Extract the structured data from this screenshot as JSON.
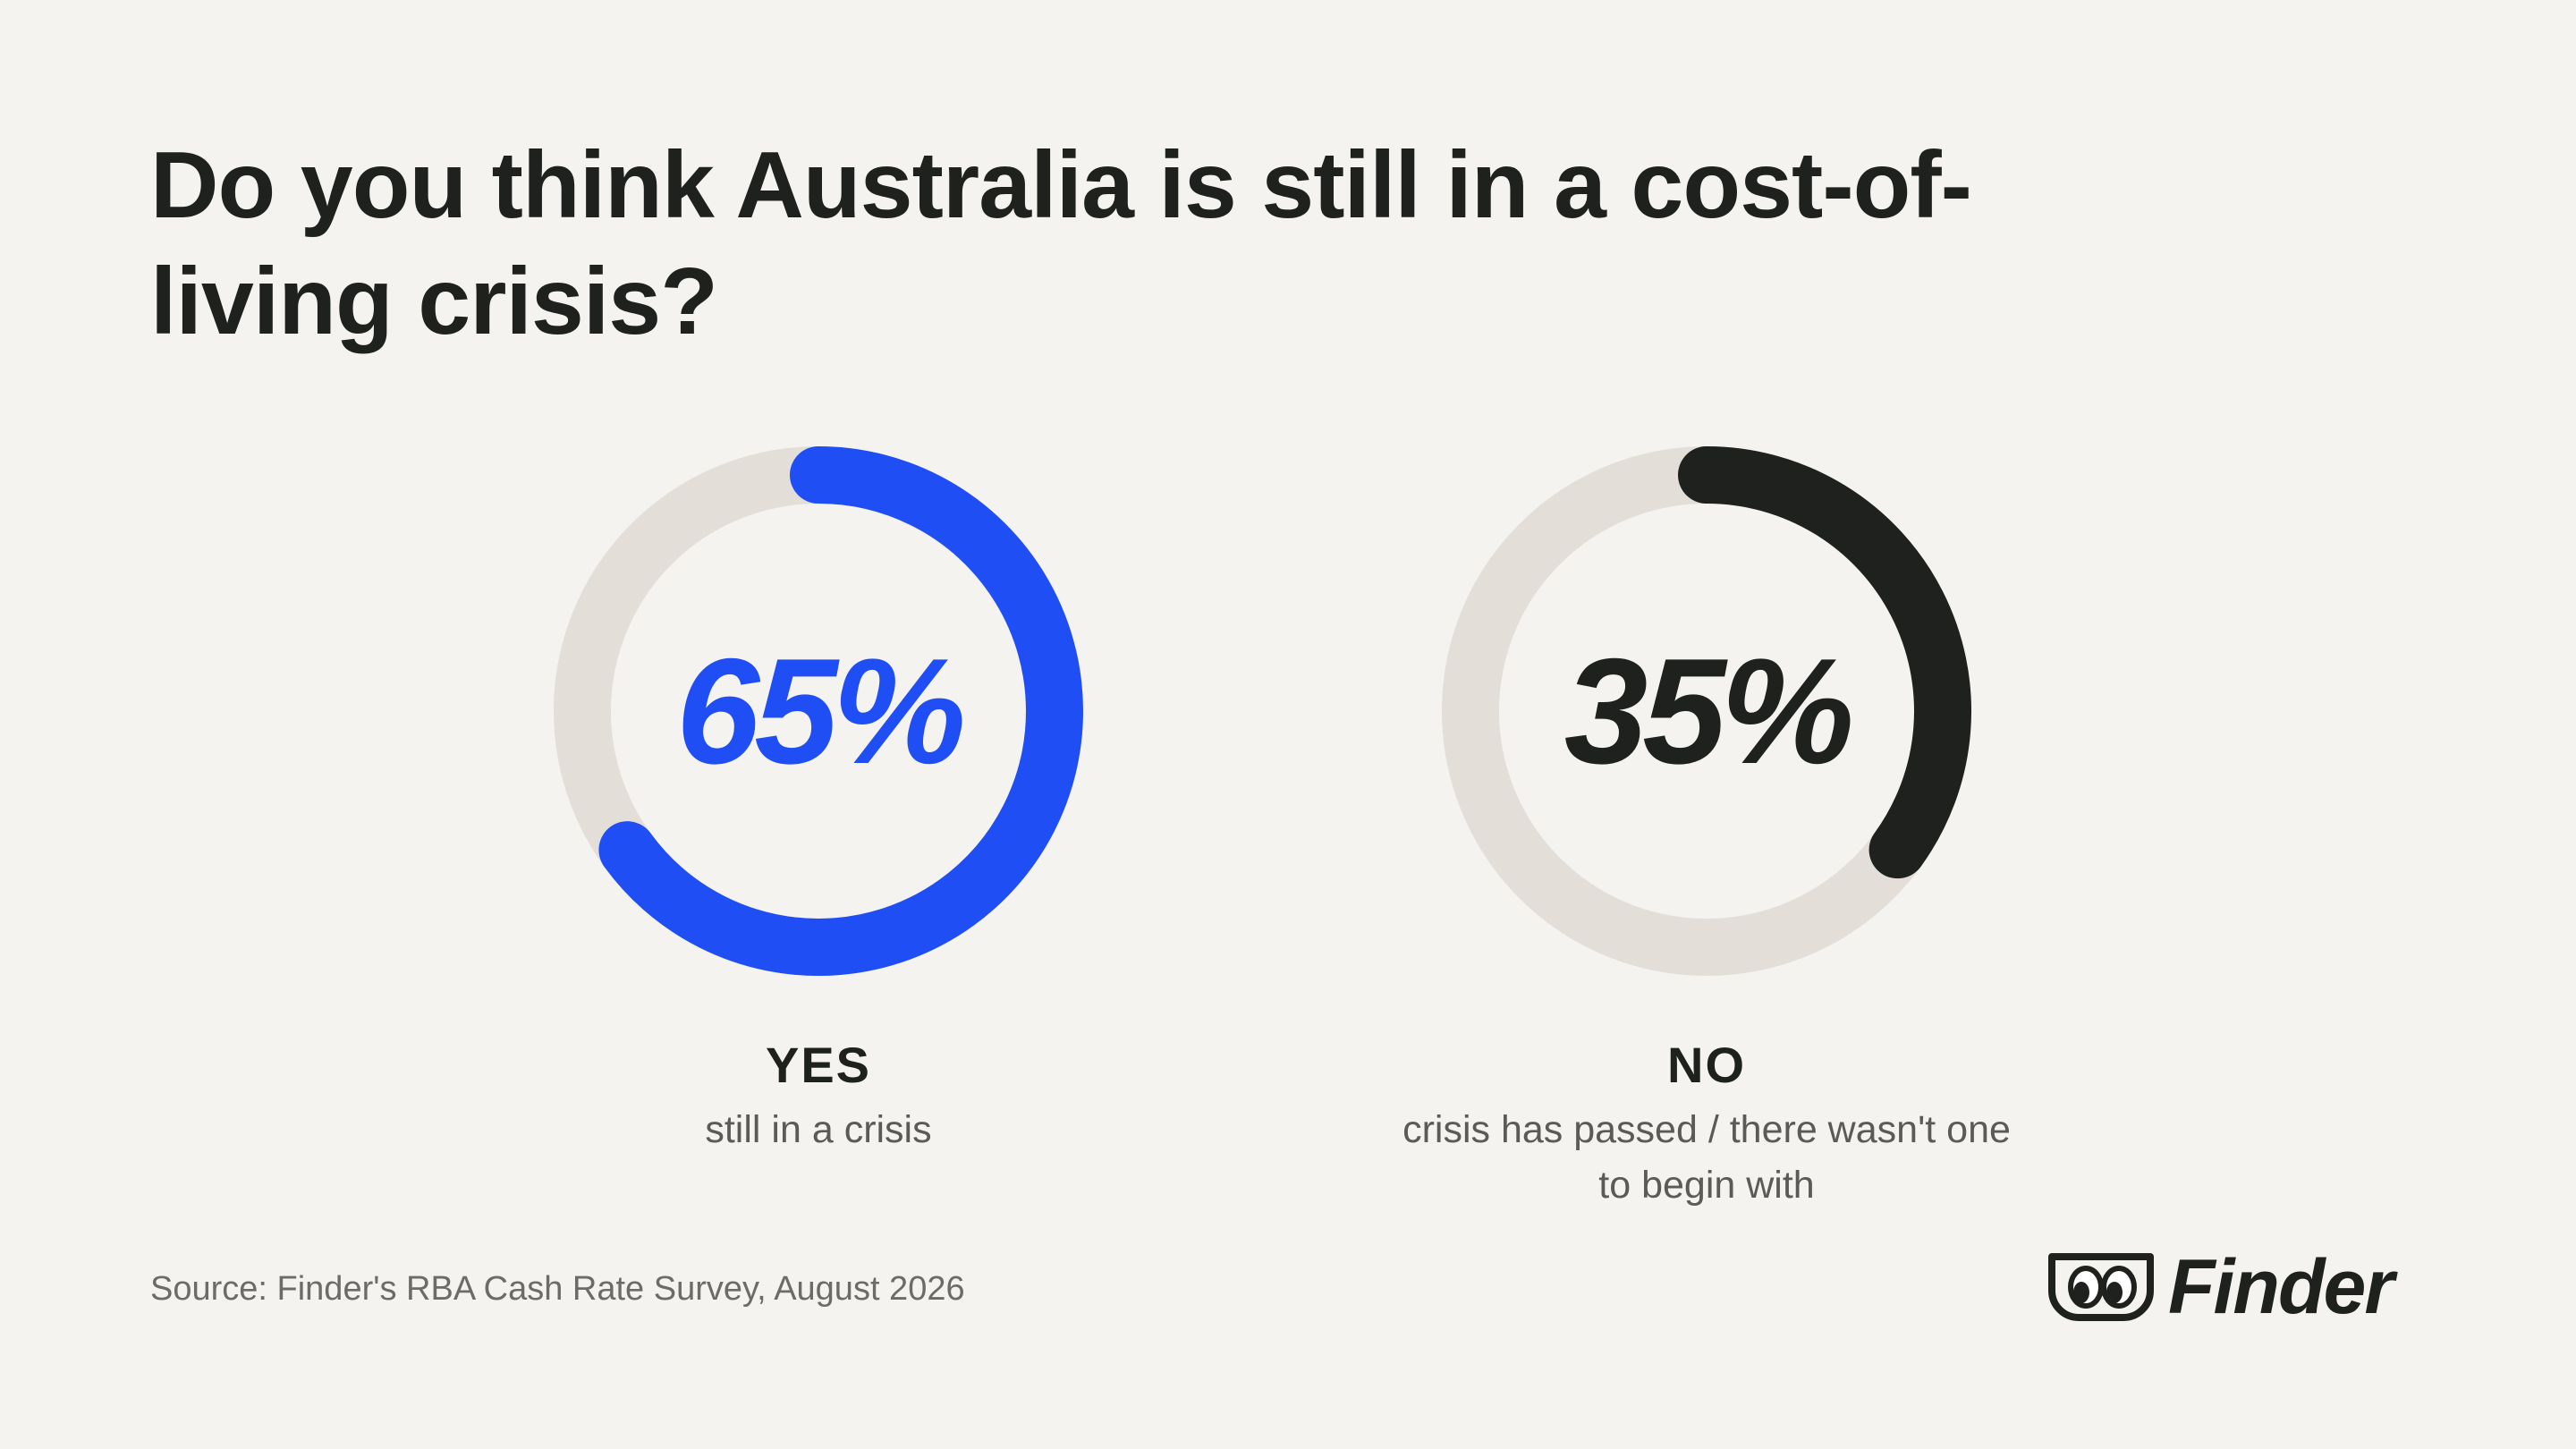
{
  "title": "Do you think Australia is still in a cost-of-living crisis?",
  "chart_data": [
    {
      "type": "pie",
      "label": "YES",
      "sublabel": "still in a crisis",
      "value": 65,
      "display": "65%",
      "color": "#1f4ef5",
      "track_color": "#e3dfd8"
    },
    {
      "type": "pie",
      "label": "NO",
      "sublabel": "crisis has passed / there wasn't one to begin with",
      "value": 35,
      "display": "35%",
      "color": "#1f211e",
      "track_color": "#e3dfd8"
    }
  ],
  "source": "Source: Finder's RBA Cash Rate Survey, August 2026",
  "logo": {
    "text": "Finder",
    "icon": "finder-eyes-icon"
  }
}
